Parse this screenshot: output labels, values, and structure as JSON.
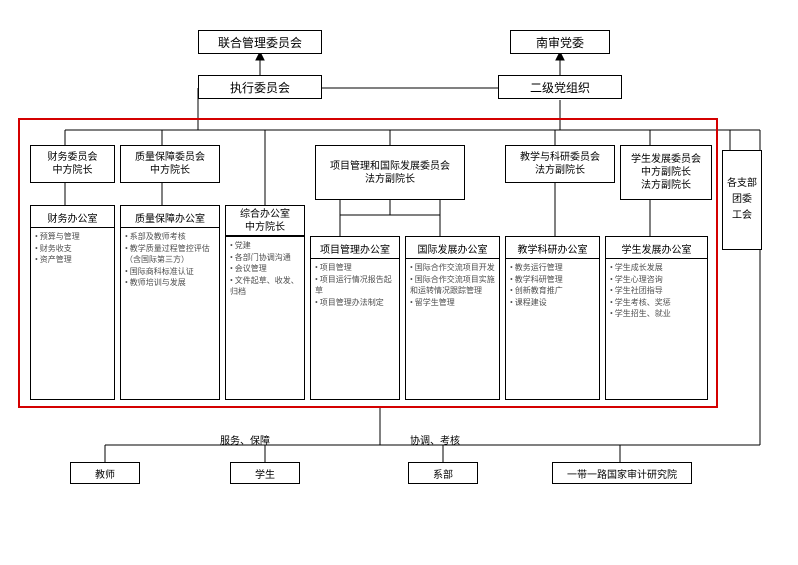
{
  "type": "org-chart",
  "colors": {
    "line": "#000000",
    "red_frame": "#d40000",
    "bg": "#ffffff",
    "bullet_text": "#4f4f4f"
  },
  "fonts": {
    "title": 12,
    "normal": 10,
    "small": 8
  },
  "top": {
    "left": "联合管理委员会",
    "right": "南审党委"
  },
  "row2": {
    "left": "执行委员会",
    "right": "二级党组织"
  },
  "committees": {
    "finance": {
      "title": "财务委员会",
      "sub": "中方院长"
    },
    "quality": {
      "title": "质量保障委员会",
      "sub": "中方院长"
    },
    "project": {
      "title": "项目管理和国际发展委员会",
      "sub": "法方副院长"
    },
    "teaching": {
      "title": "教学与科研委员会",
      "sub": "法方副院长"
    },
    "student": {
      "title": "学生发展委员会",
      "sub1": "中方副院长",
      "sub2": "法方副院长"
    }
  },
  "offices": {
    "finance": {
      "title": "财务办公室",
      "items": [
        "预算与管理",
        "财务收支",
        "资产管理"
      ]
    },
    "quality": {
      "title": "质量保障办公室",
      "items": [
        "系部及教师考核",
        "教学质量过程管控评估（含国际第三方）",
        "国际商科标准认证",
        "教师培训与发展"
      ]
    },
    "general": {
      "title": "综合办公室",
      "sub": "中方院长",
      "items": [
        "党建",
        "各部门协调沟通",
        "会议管理",
        "文件起草、收发、归档"
      ]
    },
    "project": {
      "title": "项目管理办公室",
      "items": [
        "项目管理",
        "项目运行情况报告起草",
        "项目管理办法制定"
      ]
    },
    "intl": {
      "title": "国际发展办公室",
      "items": [
        "国际合作交流项目开发",
        "国际合作交流项目实施和运转情况跟踪管理",
        "留学生管理"
      ]
    },
    "teaching": {
      "title": "教学科研办公室",
      "items": [
        "教务运行管理",
        "教学科研管理",
        "创新教育推广",
        "课程建设"
      ]
    },
    "student": {
      "title": "学生发展办公室",
      "items": [
        "学生成长发展",
        "学生心理咨询",
        "学生社团指导",
        "学生考核、奖惩",
        "学生招生、就业"
      ]
    }
  },
  "right_side": {
    "line1": "各支部",
    "line2": "团委",
    "line3": "工会"
  },
  "bottom_labels": {
    "left": "服务、保障",
    "right": "协调、考核"
  },
  "bottom_boxes": [
    "教师",
    "学生",
    "系部",
    "一带一路国家审计研究院"
  ]
}
